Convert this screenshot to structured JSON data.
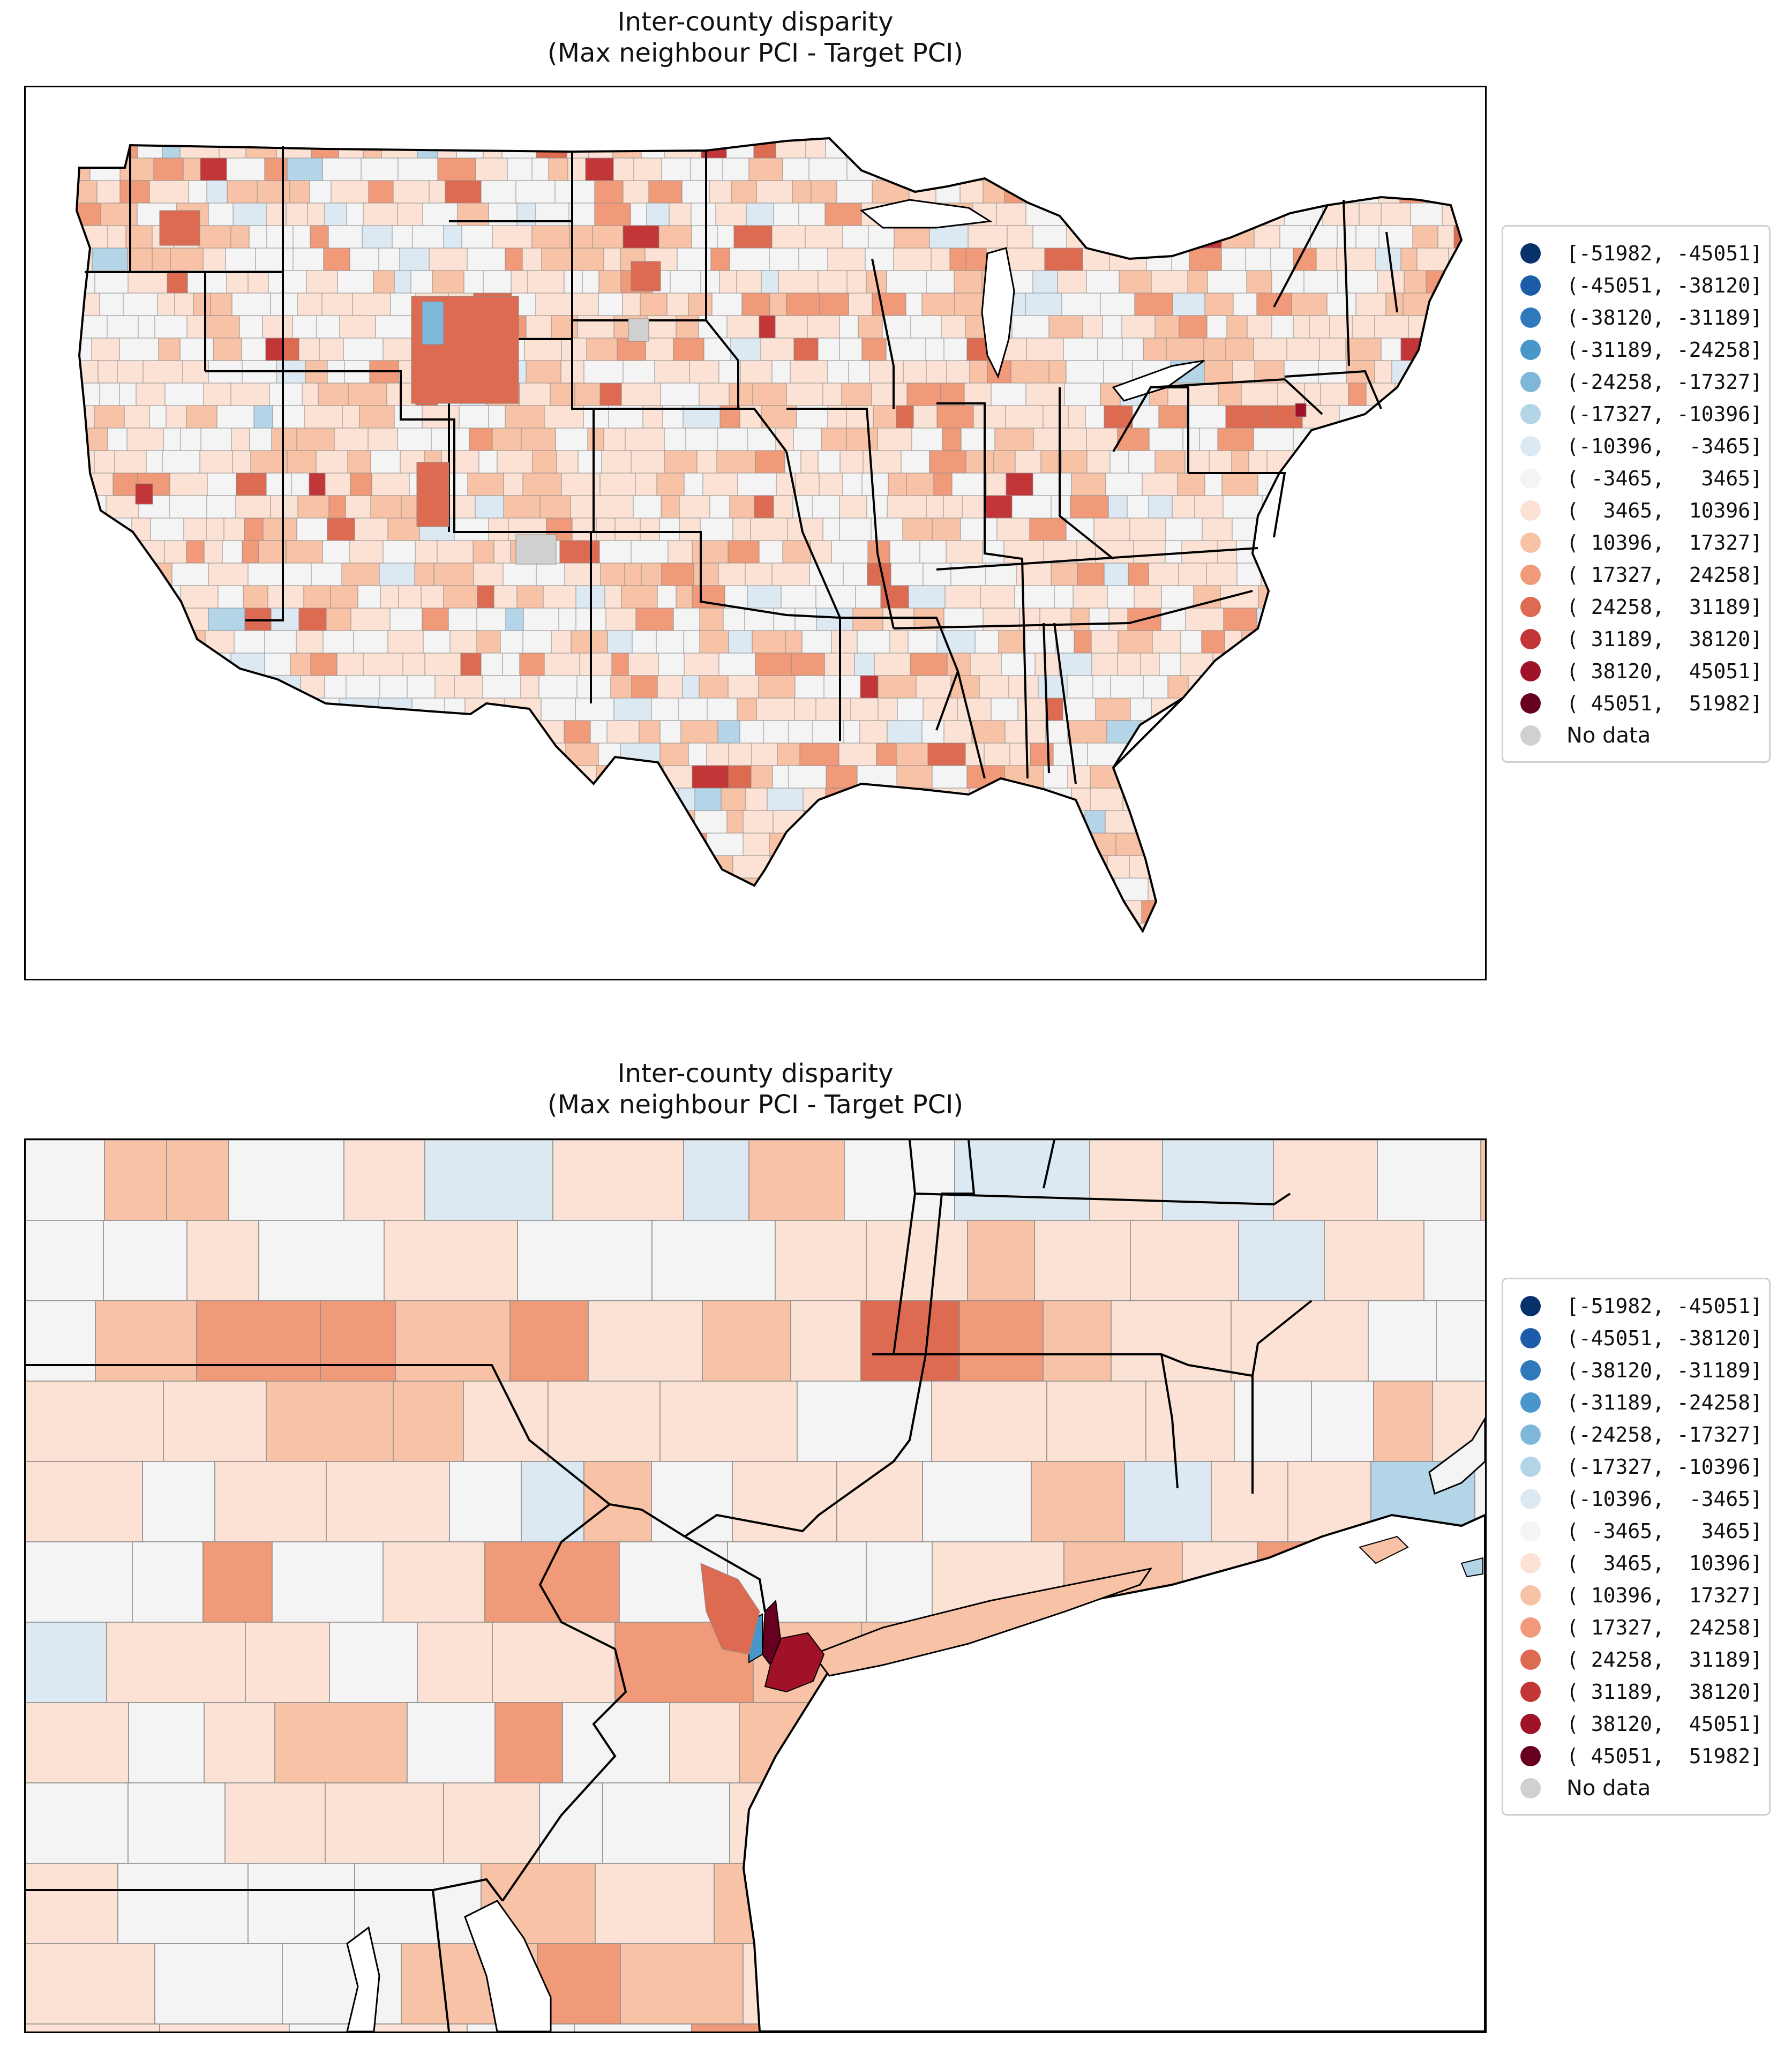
{
  "panels": [
    {
      "title_line1": "Inter-county disparity",
      "title_line2": "(Max neighbour PCI - Target PCI)"
    },
    {
      "title_line1": "Inter-county disparity",
      "title_line2": "(Max neighbour PCI - Target PCI)"
    }
  ],
  "legend": {
    "items": [
      {
        "label": "[-51982, -45051]",
        "color": "#08306b"
      },
      {
        "label": "(-45051, -38120]",
        "color": "#1c5ca8"
      },
      {
        "label": "(-38120, -31189]",
        "color": "#2f78bb"
      },
      {
        "label": "(-31189, -24258]",
        "color": "#4896ca"
      },
      {
        "label": "(-24258, -17327]",
        "color": "#7fb7da"
      },
      {
        "label": "(-17327, -10396]",
        "color": "#b4d5e8"
      },
      {
        "label": "(-10396,  -3465]",
        "color": "#dde9f2"
      },
      {
        "label": "( -3465,   3465]",
        "color": "#f4f4f4"
      },
      {
        "label": "(  3465,  10396]",
        "color": "#fbe2d4"
      },
      {
        "label": "( 10396,  17327]",
        "color": "#f8c2a6"
      },
      {
        "label": "( 17327,  24258]",
        "color": "#f09a79"
      },
      {
        "label": "( 24258,  31189]",
        "color": "#dc6b52"
      },
      {
        "label": "( 31189,  38120]",
        "color": "#c33638"
      },
      {
        "label": "( 38120,  45051]",
        "color": "#a01228"
      },
      {
        "label": "( 45051,  51982]",
        "color": "#67001f"
      },
      {
        "label": "No data",
        "color": "#d0d0d0"
      }
    ]
  },
  "colors": {
    "state_border": "#000000",
    "county_border": "#8a8a8a",
    "legend_border": "#cfcfcf"
  }
}
